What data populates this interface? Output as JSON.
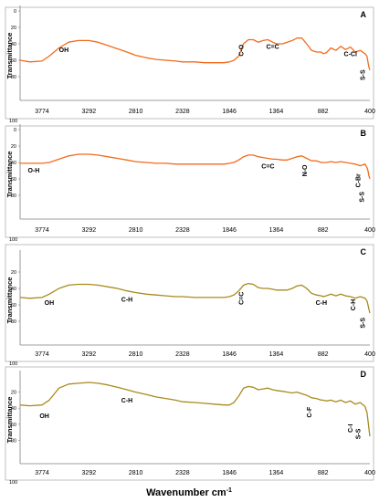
{
  "xlabel": "Wavenumber cm",
  "xlabel_sup": "-1",
  "chart_data": [
    {
      "type": "line",
      "panel": "A",
      "ylabel": "Transmittance",
      "color": "#f26b1d",
      "x_ticks": [
        "3774",
        "3292",
        "2810",
        "2328",
        "1846",
        "1364",
        "882",
        "400"
      ],
      "y_ticks": [
        "0",
        "20",
        "40",
        "60",
        "80"
      ],
      "y_bottom_label": "100",
      "xlim": [
        4000,
        400
      ],
      "ylim": [
        0,
        100
      ],
      "x": [
        4000,
        3900,
        3774,
        3700,
        3600,
        3500,
        3400,
        3292,
        3200,
        3100,
        3000,
        2900,
        2810,
        2700,
        2600,
        2500,
        2400,
        2328,
        2200,
        2100,
        2000,
        1900,
        1846,
        1800,
        1750,
        1700,
        1650,
        1600,
        1550,
        1500,
        1450,
        1400,
        1364,
        1300,
        1250,
        1200,
        1150,
        1100,
        1050,
        1000,
        950,
        900,
        882,
        850,
        800,
        750,
        700,
        650,
        600,
        550,
        500,
        450,
        430,
        420,
        410,
        400
      ],
      "y": [
        60,
        62,
        61,
        55,
        45,
        38,
        36,
        36,
        38,
        42,
        46,
        50,
        54,
        57,
        59,
        60,
        61,
        62,
        62,
        63,
        63,
        63,
        62,
        60,
        55,
        40,
        35,
        35,
        38,
        36,
        35,
        38,
        40,
        40,
        38,
        36,
        33,
        33,
        40,
        48,
        50,
        50,
        52,
        51,
        45,
        48,
        43,
        47,
        44,
        50,
        48,
        52,
        55,
        62,
        68,
        72
      ],
      "annotations": [
        {
          "text": "OH",
          "x": 3550,
          "y": 50,
          "rotate": false
        },
        {
          "text": "C-O",
          "x": 1700,
          "y": 48,
          "rotate": true
        },
        {
          "text": "C=C",
          "x": 1400,
          "y": 46,
          "rotate": false
        },
        {
          "text": "C-Cl",
          "x": 600,
          "y": 55,
          "rotate": false
        },
        {
          "text": "S-S",
          "x": 450,
          "y": 78,
          "rotate": true
        }
      ]
    },
    {
      "type": "line",
      "panel": "B",
      "ylabel": "Transmittance",
      "color": "#f26b1d",
      "x_ticks": [
        "3774",
        "3292",
        "2810",
        "2328",
        "1846",
        "1364",
        "882",
        "400"
      ],
      "y_ticks": [
        "0",
        "20",
        "40",
        "60",
        "80"
      ],
      "y_bottom_label": "100",
      "xlim": [
        4000,
        400
      ],
      "ylim": [
        0,
        100
      ],
      "x": [
        4000,
        3900,
        3774,
        3700,
        3600,
        3500,
        3400,
        3292,
        3200,
        3100,
        3000,
        2900,
        2810,
        2700,
        2600,
        2500,
        2400,
        2328,
        2200,
        2100,
        2000,
        1900,
        1846,
        1800,
        1750,
        1700,
        1650,
        1600,
        1550,
        1500,
        1450,
        1400,
        1364,
        1300,
        1250,
        1200,
        1150,
        1100,
        1050,
        1000,
        950,
        900,
        882,
        850,
        800,
        750,
        700,
        650,
        600,
        550,
        500,
        450,
        430,
        420,
        410,
        400
      ],
      "y": [
        41,
        41,
        41,
        40,
        36,
        32,
        30,
        30,
        31,
        33,
        35,
        37,
        39,
        40,
        41,
        41,
        42,
        42,
        42,
        42,
        42,
        42,
        41,
        40,
        37,
        33,
        31,
        31,
        33,
        34,
        35,
        36,
        36,
        37,
        37,
        35,
        33,
        32,
        35,
        38,
        38,
        40,
        40,
        40,
        39,
        40,
        39,
        40,
        41,
        42,
        44,
        42,
        46,
        50,
        56,
        60
      ],
      "annotations": [
        {
          "text": "O-H",
          "x": 3860,
          "y": 52,
          "rotate": false
        },
        {
          "text": "C=C",
          "x": 1450,
          "y": 47,
          "rotate": false
        },
        {
          "text": "N-O",
          "x": 1050,
          "y": 50,
          "rotate": true
        },
        {
          "text": "C-Br",
          "x": 500,
          "y": 62,
          "rotate": true
        },
        {
          "text": "S-S",
          "x": 460,
          "y": 82,
          "rotate": true
        }
      ]
    },
    {
      "type": "line",
      "panel": "C",
      "ylabel": "Transmittance",
      "color": "#a88a1e",
      "x_ticks": [
        "3774",
        "3292",
        "2810",
        "2328",
        "1846",
        "1364",
        "882",
        "400"
      ],
      "y_ticks": [
        "20",
        "40",
        "60",
        "80"
      ],
      "y_bottom_label": "100",
      "xlim": [
        4000,
        400
      ],
      "ylim": [
        0,
        100
      ],
      "x": [
        4000,
        3900,
        3774,
        3700,
        3600,
        3500,
        3400,
        3292,
        3200,
        3100,
        3000,
        2900,
        2810,
        2700,
        2600,
        2500,
        2400,
        2328,
        2200,
        2100,
        2000,
        1900,
        1846,
        1800,
        1750,
        1700,
        1650,
        1600,
        1550,
        1500,
        1450,
        1400,
        1364,
        1300,
        1250,
        1200,
        1150,
        1100,
        1050,
        1000,
        950,
        900,
        882,
        850,
        800,
        750,
        700,
        650,
        600,
        550,
        500,
        450,
        430,
        420,
        410,
        400
      ],
      "y": [
        51,
        52,
        51,
        47,
        40,
        36,
        35,
        35,
        36,
        38,
        40,
        43,
        45,
        47,
        48,
        49,
        50,
        50,
        51,
        51,
        51,
        51,
        50,
        48,
        43,
        36,
        34,
        35,
        39,
        40,
        40,
        41,
        42,
        42,
        42,
        40,
        37,
        36,
        40,
        46,
        48,
        49,
        50,
        49,
        47,
        49,
        47,
        49,
        50,
        52,
        50,
        52,
        55,
        60,
        65,
        70
      ],
      "annotations": [
        {
          "text": "OH",
          "x": 3700,
          "y": 60,
          "rotate": false
        },
        {
          "text": "C-H",
          "x": 2900,
          "y": 56,
          "rotate": false
        },
        {
          "text": "C=C",
          "x": 1700,
          "y": 52,
          "rotate": true
        },
        {
          "text": "C-H",
          "x": 900,
          "y": 60,
          "rotate": false
        },
        {
          "text": "C-H",
          "x": 550,
          "y": 60,
          "rotate": true
        },
        {
          "text": "S-S",
          "x": 450,
          "y": 82,
          "rotate": true
        }
      ]
    },
    {
      "type": "line",
      "panel": "D",
      "ylabel": "Transmittance",
      "color": "#a88a1e",
      "x_ticks": [
        "3774",
        "3292",
        "2810",
        "2328",
        "1846",
        "1364",
        "882",
        "400"
      ],
      "y_ticks": [
        "20",
        "40",
        "60",
        "80"
      ],
      "y_bottom_label": "100",
      "xlim": [
        4000,
        400
      ],
      "ylim": [
        0,
        100
      ],
      "x": [
        4000,
        3900,
        3774,
        3700,
        3600,
        3500,
        3400,
        3292,
        3200,
        3100,
        3000,
        2900,
        2810,
        2700,
        2600,
        2500,
        2400,
        2328,
        2200,
        2100,
        2000,
        1900,
        1846,
        1800,
        1750,
        1700,
        1650,
        1600,
        1550,
        1500,
        1450,
        1400,
        1364,
        1300,
        1250,
        1200,
        1150,
        1100,
        1050,
        1000,
        950,
        900,
        882,
        850,
        800,
        750,
        700,
        650,
        600,
        550,
        500,
        450,
        430,
        420,
        410,
        400
      ],
      "y": [
        36,
        37,
        36,
        30,
        15,
        10,
        9,
        8,
        9,
        11,
        14,
        17,
        20,
        23,
        26,
        28,
        30,
        32,
        33,
        34,
        35,
        36,
        36,
        33,
        25,
        15,
        13,
        14,
        17,
        16,
        15,
        17,
        18,
        19,
        20,
        21,
        20,
        22,
        24,
        27,
        28,
        30,
        30,
        31,
        30,
        32,
        30,
        33,
        31,
        35,
        33,
        38,
        45,
        55,
        65,
        75
      ],
      "annotations": [
        {
          "text": "OH",
          "x": 3750,
          "y": 52,
          "rotate": false
        },
        {
          "text": "C-H",
          "x": 2900,
          "y": 33,
          "rotate": false
        },
        {
          "text": "C-F",
          "x": 1000,
          "y": 45,
          "rotate": true
        },
        {
          "text": "C-I",
          "x": 580,
          "y": 65,
          "rotate": true
        },
        {
          "text": "S-S",
          "x": 500,
          "y": 72,
          "rotate": true
        }
      ]
    }
  ]
}
